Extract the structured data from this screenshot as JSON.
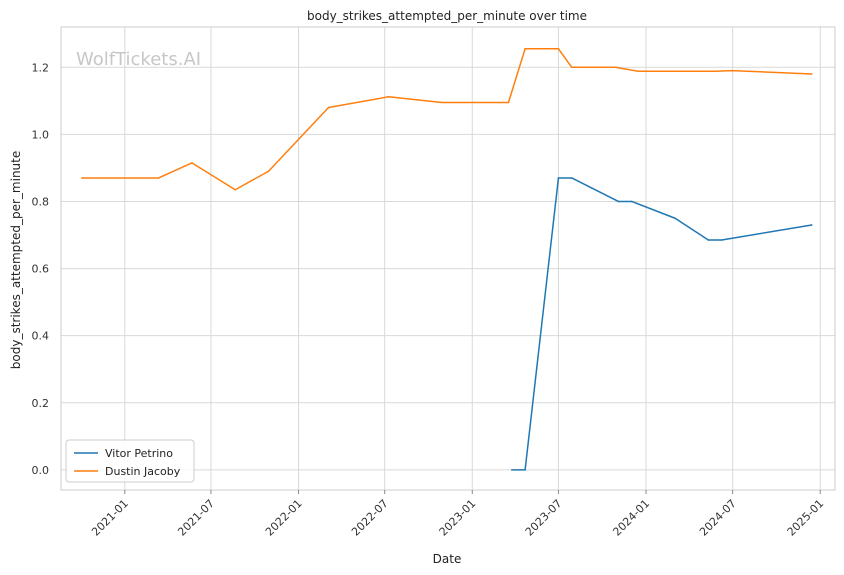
{
  "chart_data": {
    "type": "line",
    "title": "body_strikes_attempted_per_minute over time",
    "xlabel": "Date",
    "ylabel": "body_strikes_attempted_per_minute",
    "watermark": "WolfTickets.AI",
    "xlim": [
      "2020-08-20",
      "2025-02-01"
    ],
    "ylim": [
      -0.06,
      1.32
    ],
    "x_ticks": [
      "2021-01",
      "2021-07",
      "2022-01",
      "2022-07",
      "2023-01",
      "2023-07",
      "2024-01",
      "2024-07",
      "2025-01"
    ],
    "y_ticks": [
      "0.0",
      "0.2",
      "0.4",
      "0.6",
      "0.8",
      "1.0",
      "1.2"
    ],
    "grid": true,
    "legend_position": "lower-left",
    "series": [
      {
        "name": "Vitor Petrino",
        "color": "#1f77b4",
        "points": [
          [
            "2023-03-25",
            0.0
          ],
          [
            "2023-04-22",
            0.0
          ],
          [
            "2023-07-01",
            0.87
          ],
          [
            "2023-07-29",
            0.87
          ],
          [
            "2023-11-04",
            0.8
          ],
          [
            "2023-12-02",
            0.8
          ],
          [
            "2024-03-02",
            0.75
          ],
          [
            "2024-05-11",
            0.685
          ],
          [
            "2024-06-08",
            0.685
          ],
          [
            "2024-12-14",
            0.73
          ]
        ]
      },
      {
        "name": "Dustin Jacoby",
        "color": "#ff7f0e",
        "points": [
          [
            "2020-10-03",
            0.87
          ],
          [
            "2021-03-13",
            0.87
          ],
          [
            "2021-05-22",
            0.915
          ],
          [
            "2021-08-21",
            0.835
          ],
          [
            "2021-10-30",
            0.89
          ],
          [
            "2022-03-05",
            1.08
          ],
          [
            "2022-07-09",
            1.112
          ],
          [
            "2022-10-29",
            1.095
          ],
          [
            "2023-03-18",
            1.095
          ],
          [
            "2023-04-22",
            1.255
          ],
          [
            "2023-07-01",
            1.255
          ],
          [
            "2023-07-29",
            1.2
          ],
          [
            "2023-10-28",
            1.2
          ],
          [
            "2023-12-16",
            1.188
          ],
          [
            "2024-05-25",
            1.188
          ],
          [
            "2024-06-29",
            1.19
          ],
          [
            "2024-12-14",
            1.18
          ]
        ]
      }
    ]
  }
}
